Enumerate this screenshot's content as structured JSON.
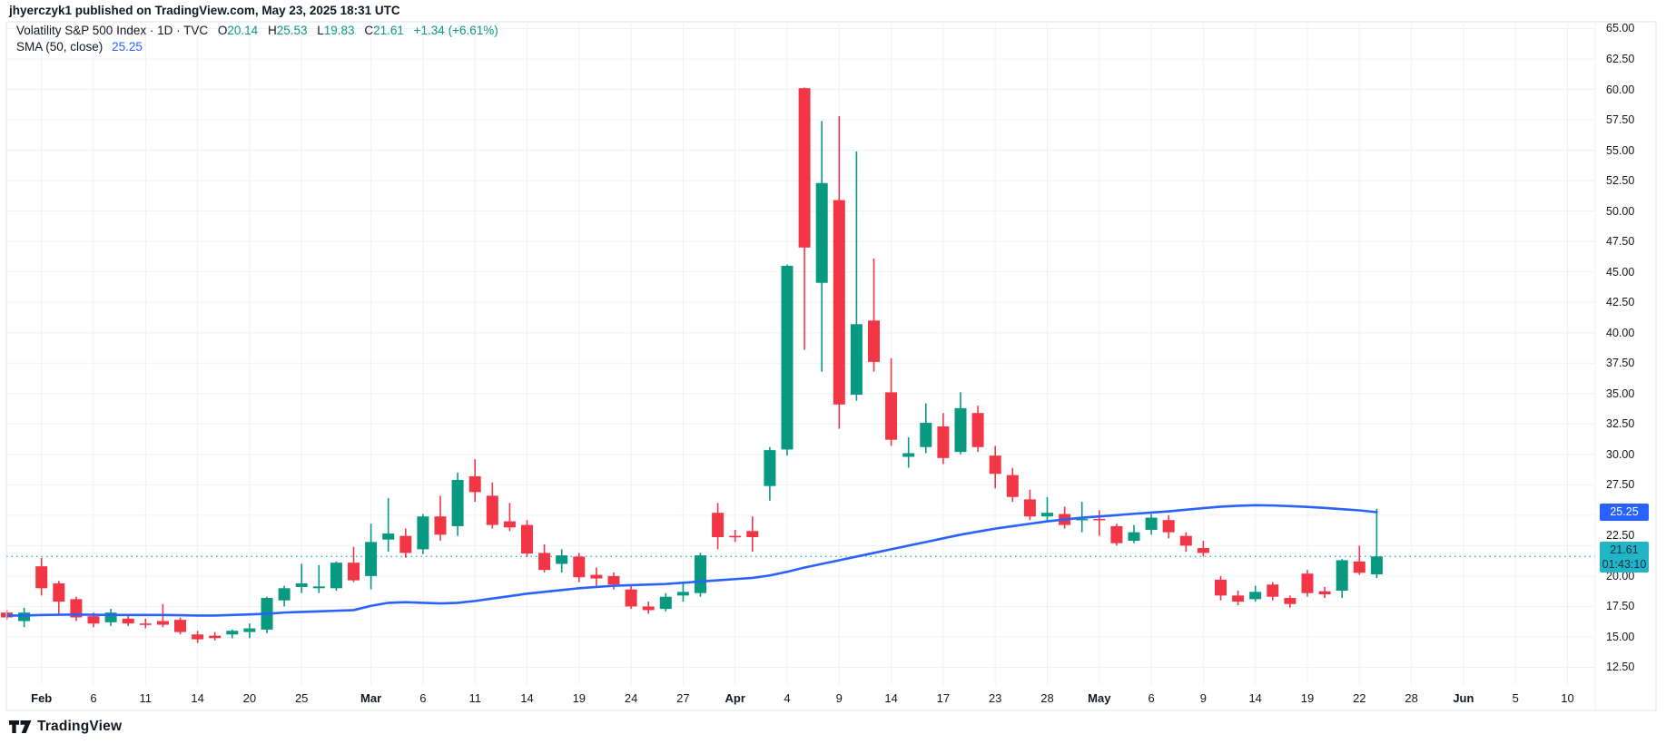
{
  "meta": {
    "byline": "jhyerczyk1 published on TradingView.com, May 23, 2025 18:31 UTC"
  },
  "legend": {
    "title": "Volatility S&P 500 Index · 1D · TVC",
    "o_label": "O",
    "o": "20.14",
    "h_label": "H",
    "h": "25.53",
    "l_label": "L",
    "l": "19.83",
    "c_label": "C",
    "c": "21.61",
    "change": "+1.34 (+6.61%)",
    "sma_label": "SMA (50, close)",
    "sma_value": "25.25"
  },
  "price_axis": {
    "labels": [
      "65.00",
      "62.50",
      "60.00",
      "57.50",
      "55.00",
      "52.50",
      "50.00",
      "47.50",
      "45.00",
      "42.50",
      "40.00",
      "37.50",
      "35.00",
      "32.50",
      "30.00",
      "27.50",
      "22.50",
      "20.00",
      "17.50",
      "15.00",
      "12.50"
    ],
    "sma_badge": "25.25",
    "last_badge": "21.61",
    "countdown": "01:43:10"
  },
  "time_axis": {
    "ticks": [
      {
        "label": "Feb",
        "bar": 2
      },
      {
        "label": "6",
        "bar": 5
      },
      {
        "label": "11",
        "bar": 8
      },
      {
        "label": "14",
        "bar": 11
      },
      {
        "label": "20",
        "bar": 14
      },
      {
        "label": "25",
        "bar": 17
      },
      {
        "label": "Mar",
        "bar": 21
      },
      {
        "label": "6",
        "bar": 24
      },
      {
        "label": "11",
        "bar": 27
      },
      {
        "label": "14",
        "bar": 30
      },
      {
        "label": "19",
        "bar": 33
      },
      {
        "label": "24",
        "bar": 36
      },
      {
        "label": "27",
        "bar": 39
      },
      {
        "label": "Apr",
        "bar": 42
      },
      {
        "label": "4",
        "bar": 45
      },
      {
        "label": "9",
        "bar": 48
      },
      {
        "label": "14",
        "bar": 51
      },
      {
        "label": "17",
        "bar": 54
      },
      {
        "label": "23",
        "bar": 57
      },
      {
        "label": "28",
        "bar": 60
      },
      {
        "label": "May",
        "bar": 63
      },
      {
        "label": "6",
        "bar": 66
      },
      {
        "label": "9",
        "bar": 69
      },
      {
        "label": "14",
        "bar": 72
      },
      {
        "label": "19",
        "bar": 75
      },
      {
        "label": "22",
        "bar": 78
      },
      {
        "label": "28",
        "bar": 81
      },
      {
        "label": "Jun",
        "bar": 84
      },
      {
        "label": "5",
        "bar": 87
      },
      {
        "label": "10",
        "bar": 90
      }
    ]
  },
  "footer": {
    "brand": "TradingView"
  },
  "colors": {
    "up": "#089981",
    "down": "#f23645",
    "sma": "#2962ff",
    "last_badge_bg": "#22b5c6",
    "last_badge_text": "#0f3040",
    "sma_badge_bg": "#2962ff",
    "text": "#131722",
    "grid": "#edf4f0",
    "border": "#e0e3eb"
  },
  "chart_data": {
    "type": "candlestick",
    "symbol": "Volatility S&P 500 Index",
    "interval": "1D",
    "exchange": "TVC",
    "ylim": [
      12.5,
      65.0
    ],
    "grid_step": 2.5,
    "legend_position": "top-left",
    "grid": true,
    "last_price": 21.61,
    "sma_period": 50,
    "sma_last": 25.25,
    "bars": [
      {
        "d": "Jan 30",
        "o": 17.0,
        "h": 17.2,
        "l": 16.4,
        "c": 16.6
      },
      {
        "d": "Jan 31",
        "o": 16.3,
        "h": 17.4,
        "l": 15.8,
        "c": 17.0
      },
      {
        "d": "Feb 3",
        "o": 20.8,
        "h": 21.5,
        "l": 18.4,
        "c": 19.0
      },
      {
        "d": "Feb 4",
        "o": 19.4,
        "h": 19.6,
        "l": 16.9,
        "c": 17.9
      },
      {
        "d": "Feb 5",
        "o": 18.1,
        "h": 18.3,
        "l": 16.3,
        "c": 16.6
      },
      {
        "d": "Feb 6",
        "o": 16.7,
        "h": 17.0,
        "l": 15.8,
        "c": 16.1
      },
      {
        "d": "Feb 7",
        "o": 16.2,
        "h": 17.3,
        "l": 15.9,
        "c": 17.0
      },
      {
        "d": "Feb 10",
        "o": 16.5,
        "h": 16.8,
        "l": 15.9,
        "c": 16.1
      },
      {
        "d": "Feb 11",
        "o": 16.1,
        "h": 16.5,
        "l": 15.7,
        "c": 16.0
      },
      {
        "d": "Feb 12",
        "o": 16.3,
        "h": 17.7,
        "l": 15.8,
        "c": 16.0
      },
      {
        "d": "Feb 13",
        "o": 16.4,
        "h": 16.6,
        "l": 15.2,
        "c": 15.4
      },
      {
        "d": "Feb 14",
        "o": 15.2,
        "h": 15.5,
        "l": 14.5,
        "c": 14.8
      },
      {
        "d": "Feb 18",
        "o": 15.1,
        "h": 15.4,
        "l": 14.7,
        "c": 14.9
      },
      {
        "d": "Feb 19",
        "o": 15.2,
        "h": 15.6,
        "l": 14.9,
        "c": 15.5
      },
      {
        "d": "Feb 20",
        "o": 15.4,
        "h": 16.1,
        "l": 14.9,
        "c": 15.7
      },
      {
        "d": "Feb 21",
        "o": 15.6,
        "h": 18.3,
        "l": 15.3,
        "c": 18.2
      },
      {
        "d": "Feb 24",
        "o": 18.0,
        "h": 19.2,
        "l": 17.5,
        "c": 19.0
      },
      {
        "d": "Feb 25",
        "o": 19.1,
        "h": 21.0,
        "l": 18.6,
        "c": 19.4
      },
      {
        "d": "Feb 26",
        "o": 19.0,
        "h": 20.9,
        "l": 18.6,
        "c": 19.15
      },
      {
        "d": "Feb 27",
        "o": 19.0,
        "h": 21.2,
        "l": 18.8,
        "c": 21.1
      },
      {
        "d": "Feb 28",
        "o": 21.1,
        "h": 22.4,
        "l": 19.5,
        "c": 19.65
      },
      {
        "d": "Mar 3",
        "o": 20.0,
        "h": 24.3,
        "l": 18.9,
        "c": 22.8
      },
      {
        "d": "Mar 4",
        "o": 23.0,
        "h": 26.4,
        "l": 22.0,
        "c": 23.5
      },
      {
        "d": "Mar 5",
        "o": 23.3,
        "h": 23.9,
        "l": 21.5,
        "c": 21.9
      },
      {
        "d": "Mar 6",
        "o": 22.2,
        "h": 25.1,
        "l": 21.8,
        "c": 24.9
      },
      {
        "d": "Mar 7",
        "o": 24.9,
        "h": 26.6,
        "l": 22.9,
        "c": 23.4
      },
      {
        "d": "Mar 10",
        "o": 24.1,
        "h": 28.5,
        "l": 23.3,
        "c": 27.9
      },
      {
        "d": "Mar 11",
        "o": 28.2,
        "h": 29.6,
        "l": 26.1,
        "c": 26.9
      },
      {
        "d": "Mar 12",
        "o": 26.6,
        "h": 27.7,
        "l": 23.9,
        "c": 24.2
      },
      {
        "d": "Mar 13",
        "o": 24.5,
        "h": 26.0,
        "l": 23.7,
        "c": 24.0
      },
      {
        "d": "Mar 14",
        "o": 24.2,
        "h": 24.6,
        "l": 21.6,
        "c": 21.85
      },
      {
        "d": "Mar 17",
        "o": 21.9,
        "h": 22.6,
        "l": 20.3,
        "c": 20.5
      },
      {
        "d": "Mar 18",
        "o": 21.0,
        "h": 22.2,
        "l": 20.3,
        "c": 21.7
      },
      {
        "d": "Mar 19",
        "o": 21.6,
        "h": 21.9,
        "l": 19.5,
        "c": 19.9
      },
      {
        "d": "Mar 20",
        "o": 20.1,
        "h": 20.7,
        "l": 19.2,
        "c": 19.8
      },
      {
        "d": "Mar 21",
        "o": 20.0,
        "h": 20.3,
        "l": 18.9,
        "c": 19.3
      },
      {
        "d": "Mar 24",
        "o": 18.9,
        "h": 19.2,
        "l": 17.3,
        "c": 17.5
      },
      {
        "d": "Mar 25",
        "o": 17.5,
        "h": 17.9,
        "l": 16.9,
        "c": 17.2
      },
      {
        "d": "Mar 26",
        "o": 17.3,
        "h": 18.6,
        "l": 17.1,
        "c": 18.3
      },
      {
        "d": "Mar 27",
        "o": 18.4,
        "h": 19.4,
        "l": 17.9,
        "c": 18.7
      },
      {
        "d": "Mar 28",
        "o": 18.6,
        "h": 21.9,
        "l": 18.3,
        "c": 21.7
      },
      {
        "d": "Mar 31",
        "o": 25.2,
        "h": 26.0,
        "l": 22.2,
        "c": 23.2
      },
      {
        "d": "Apr 1",
        "o": 23.3,
        "h": 23.8,
        "l": 22.8,
        "c": 23.25
      },
      {
        "d": "Apr 2",
        "o": 23.7,
        "h": 24.9,
        "l": 22.0,
        "c": 23.2
      },
      {
        "d": "Apr 3",
        "o": 27.4,
        "h": 30.6,
        "l": 26.2,
        "c": 30.35
      },
      {
        "d": "Apr 4",
        "o": 30.4,
        "h": 45.6,
        "l": 29.9,
        "c": 45.5
      },
      {
        "d": "Apr 7",
        "o": 60.1,
        "h": 60.15,
        "l": 38.6,
        "c": 47.0
      },
      {
        "d": "Apr 8",
        "o": 44.1,
        "h": 57.4,
        "l": 36.8,
        "c": 52.3
      },
      {
        "d": "Apr 9",
        "o": 50.9,
        "h": 57.8,
        "l": 32.1,
        "c": 34.1
      },
      {
        "d": "Apr 10",
        "o": 34.9,
        "h": 54.9,
        "l": 34.4,
        "c": 40.7
      },
      {
        "d": "Apr 11",
        "o": 41.0,
        "h": 46.1,
        "l": 36.8,
        "c": 37.6
      },
      {
        "d": "Apr 14",
        "o": 35.1,
        "h": 37.9,
        "l": 30.7,
        "c": 31.2
      },
      {
        "d": "Apr 15",
        "o": 29.8,
        "h": 31.4,
        "l": 28.9,
        "c": 30.1
      },
      {
        "d": "Apr 16",
        "o": 30.6,
        "h": 34.2,
        "l": 30.1,
        "c": 32.6
      },
      {
        "d": "Apr 17",
        "o": 32.3,
        "h": 33.4,
        "l": 29.2,
        "c": 29.7
      },
      {
        "d": "Apr 21",
        "o": 30.2,
        "h": 35.1,
        "l": 30.0,
        "c": 33.8
      },
      {
        "d": "Apr 22",
        "o": 33.4,
        "h": 34.0,
        "l": 30.2,
        "c": 30.6
      },
      {
        "d": "Apr 23",
        "o": 29.9,
        "h": 30.7,
        "l": 27.2,
        "c": 28.4
      },
      {
        "d": "Apr 24",
        "o": 28.3,
        "h": 28.9,
        "l": 26.1,
        "c": 26.5
      },
      {
        "d": "Apr 25",
        "o": 26.3,
        "h": 27.1,
        "l": 24.6,
        "c": 24.9
      },
      {
        "d": "Apr 28",
        "o": 24.9,
        "h": 26.5,
        "l": 24.4,
        "c": 25.2
      },
      {
        "d": "Apr 29",
        "o": 25.1,
        "h": 25.7,
        "l": 23.9,
        "c": 24.2
      },
      {
        "d": "Apr 30",
        "o": 24.6,
        "h": 26.1,
        "l": 23.6,
        "c": 24.7
      },
      {
        "d": "May 1",
        "o": 24.7,
        "h": 25.4,
        "l": 23.3,
        "c": 24.6
      },
      {
        "d": "May 2",
        "o": 24.1,
        "h": 24.3,
        "l": 22.5,
        "c": 22.7
      },
      {
        "d": "May 5",
        "o": 22.9,
        "h": 24.2,
        "l": 22.7,
        "c": 23.6
      },
      {
        "d": "May 6",
        "o": 23.8,
        "h": 25.1,
        "l": 23.4,
        "c": 24.8
      },
      {
        "d": "May 7",
        "o": 24.6,
        "h": 25.0,
        "l": 23.1,
        "c": 23.6
      },
      {
        "d": "May 8",
        "o": 23.3,
        "h": 23.6,
        "l": 22.0,
        "c": 22.5
      },
      {
        "d": "May 9",
        "o": 22.3,
        "h": 22.9,
        "l": 21.6,
        "c": 21.9
      },
      {
        "d": "May 12",
        "o": 19.7,
        "h": 20.0,
        "l": 18.0,
        "c": 18.4
      },
      {
        "d": "May 13",
        "o": 18.4,
        "h": 18.8,
        "l": 17.6,
        "c": 17.9
      },
      {
        "d": "May 14",
        "o": 18.1,
        "h": 19.2,
        "l": 17.9,
        "c": 18.7
      },
      {
        "d": "May 15",
        "o": 19.3,
        "h": 19.5,
        "l": 18.0,
        "c": 18.3
      },
      {
        "d": "May 16",
        "o": 18.2,
        "h": 18.4,
        "l": 17.4,
        "c": 17.7
      },
      {
        "d": "May 19",
        "o": 20.2,
        "h": 20.5,
        "l": 18.3,
        "c": 18.6
      },
      {
        "d": "May 20",
        "o": 18.75,
        "h": 19.1,
        "l": 18.2,
        "c": 18.5
      },
      {
        "d": "May 21",
        "o": 18.8,
        "h": 21.4,
        "l": 18.2,
        "c": 21.3
      },
      {
        "d": "May 22",
        "o": 21.2,
        "h": 22.5,
        "l": 20.1,
        "c": 20.27
      },
      {
        "d": "May 23",
        "o": 20.14,
        "h": 25.53,
        "l": 19.83,
        "c": 21.61
      }
    ],
    "sma50": [
      16.75,
      16.75,
      16.8,
      16.82,
      16.84,
      16.82,
      16.8,
      16.8,
      16.8,
      16.8,
      16.78,
      16.75,
      16.75,
      16.8,
      16.85,
      16.9,
      17.0,
      17.05,
      17.1,
      17.15,
      17.2,
      17.55,
      17.8,
      17.85,
      17.8,
      17.75,
      17.8,
      17.95,
      18.15,
      18.35,
      18.55,
      18.7,
      18.85,
      19.0,
      19.1,
      19.2,
      19.25,
      19.3,
      19.35,
      19.45,
      19.55,
      19.65,
      19.75,
      19.85,
      20.05,
      20.35,
      20.7,
      21.0,
      21.3,
      21.6,
      21.9,
      22.2,
      22.5,
      22.8,
      23.1,
      23.4,
      23.65,
      23.9,
      24.1,
      24.3,
      24.5,
      24.65,
      24.8,
      24.9,
      25.0,
      25.12,
      25.22,
      25.32,
      25.45,
      25.58,
      25.7,
      25.78,
      25.82,
      25.8,
      25.75,
      25.68,
      25.6,
      25.5,
      25.4,
      25.25
    ]
  }
}
